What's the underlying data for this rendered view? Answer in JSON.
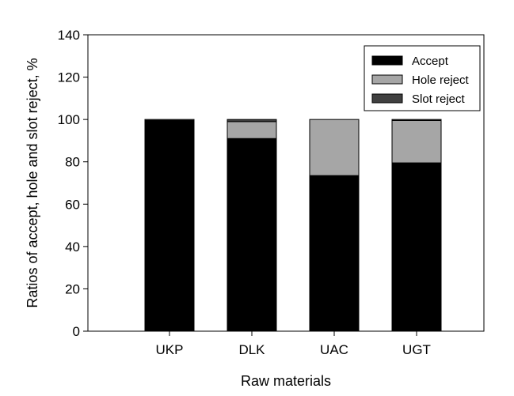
{
  "chart_data": {
    "type": "bar",
    "stacked": true,
    "categories": [
      "UKP",
      "DLK",
      "UAC",
      "UGT"
    ],
    "series": [
      {
        "name": "Accept",
        "color": "#000000",
        "values": [
          99.5,
          91,
          73.5,
          79.5
        ]
      },
      {
        "name": "Hole reject",
        "color": "#a6a6a6",
        "values": [
          0,
          8,
          26.5,
          20
        ]
      },
      {
        "name": "Slot reject",
        "color": "#404040",
        "values": [
          0.5,
          1,
          0,
          0.5
        ]
      }
    ],
    "xlabel": "Raw materials",
    "ylabel": "Ratios of accept, hole and slot reject, %",
    "ylim": [
      0,
      140
    ],
    "yticks": [
      "0",
      "20",
      "40",
      "60",
      "80",
      "100",
      "120",
      "140"
    ],
    "legend_position": "top-right",
    "grid": false
  }
}
